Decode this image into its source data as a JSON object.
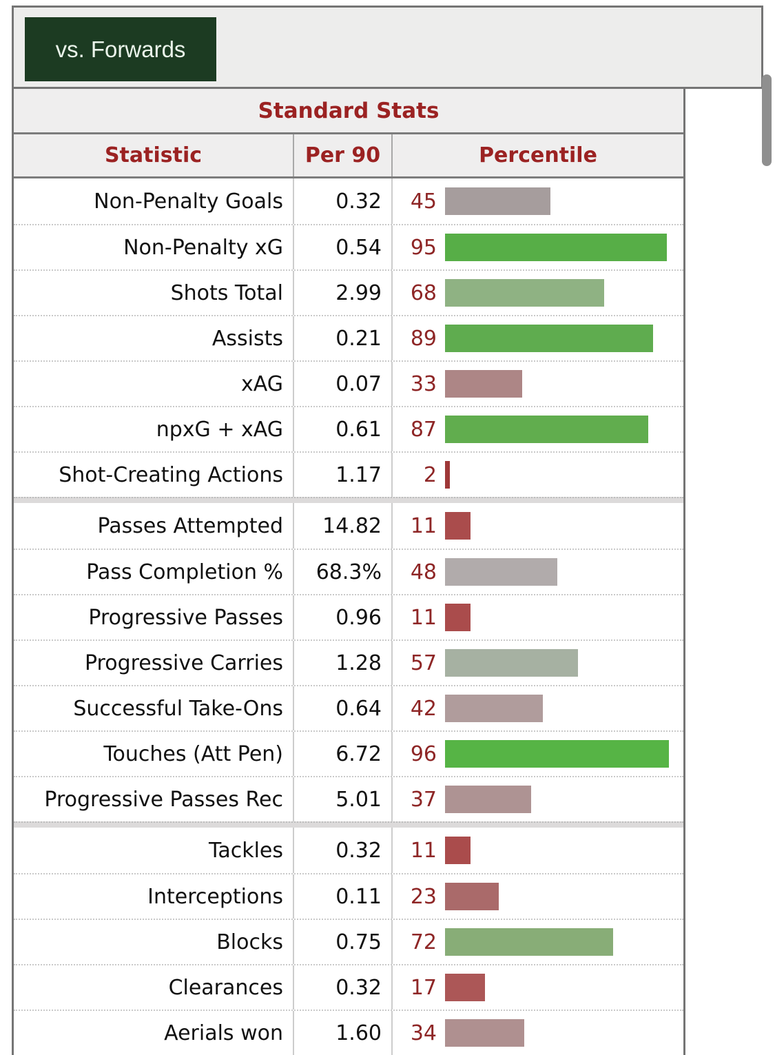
{
  "filter": {
    "label": "vs. Forwards",
    "button_bg": "#1c3b22",
    "button_text_color": "#eaf4ea"
  },
  "table": {
    "title": "Standard Stats",
    "columns": {
      "stat": "Statistic",
      "per90": "Per 90",
      "percentile": "Percentile"
    },
    "header_text_color": "#9b2222",
    "percentile_number_color": "#8e2626",
    "groups": [
      {
        "name": "attacking",
        "rows": [
          {
            "stat": "Non-Penalty Goals",
            "per90": "0.32",
            "percentile": 45,
            "bar_color": "#a69d9d"
          },
          {
            "stat": "Non-Penalty xG",
            "per90": "0.54",
            "percentile": 95,
            "bar_color": "#57ae47"
          },
          {
            "stat": "Shots Total",
            "per90": "2.99",
            "percentile": 68,
            "bar_color": "#8fb283"
          },
          {
            "stat": "Assists",
            "per90": "0.21",
            "percentile": 89,
            "bar_color": "#5fac4f"
          },
          {
            "stat": "xAG",
            "per90": "0.07",
            "percentile": 33,
            "bar_color": "#ad8686"
          },
          {
            "stat": "npxG + xAG",
            "per90": "0.61",
            "percentile": 87,
            "bar_color": "#61ad4e"
          },
          {
            "stat": "Shot-Creating Actions",
            "per90": "1.17",
            "percentile": 2,
            "bar_color": "#9e3838"
          }
        ]
      },
      {
        "name": "possession",
        "rows": [
          {
            "stat": "Passes Attempted",
            "per90": "14.82",
            "percentile": 11,
            "bar_color": "#aa4c4c"
          },
          {
            "stat": "Pass Completion %",
            "per90": "68.3%",
            "percentile": 48,
            "bar_color": "#b1abab"
          },
          {
            "stat": "Progressive Passes",
            "per90": "0.96",
            "percentile": 11,
            "bar_color": "#aa4c4c"
          },
          {
            "stat": "Progressive Carries",
            "per90": "1.28",
            "percentile": 57,
            "bar_color": "#a6b1a2"
          },
          {
            "stat": "Successful Take-Ons",
            "per90": "0.64",
            "percentile": 42,
            "bar_color": "#b09c9c"
          },
          {
            "stat": "Touches (Att Pen)",
            "per90": "6.72",
            "percentile": 96,
            "bar_color": "#56b445"
          },
          {
            "stat": "Progressive Passes Rec",
            "per90": "5.01",
            "percentile": 37,
            "bar_color": "#ae9393"
          }
        ]
      },
      {
        "name": "defending",
        "rows": [
          {
            "stat": "Tackles",
            "per90": "0.32",
            "percentile": 11,
            "bar_color": "#aa4c4c"
          },
          {
            "stat": "Interceptions",
            "per90": "0.11",
            "percentile": 23,
            "bar_color": "#aa6a6a"
          },
          {
            "stat": "Blocks",
            "per90": "0.75",
            "percentile": 72,
            "bar_color": "#88ad77"
          },
          {
            "stat": "Clearances",
            "per90": "0.32",
            "percentile": 17,
            "bar_color": "#ac5757"
          },
          {
            "stat": "Aerials won",
            "per90": "1.60",
            "percentile": 34,
            "bar_color": "#af9090"
          }
        ]
      }
    ]
  }
}
